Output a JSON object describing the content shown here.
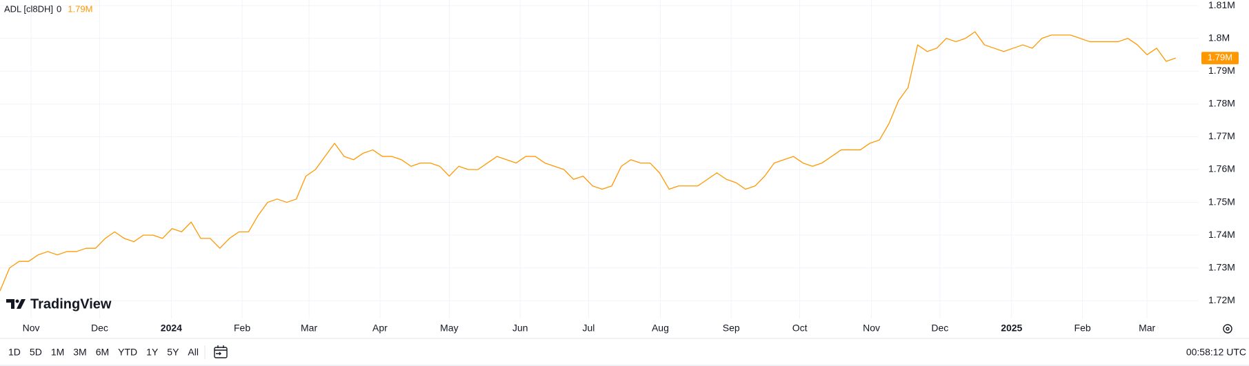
{
  "chart_data": {
    "type": "line",
    "series_name": "ADL [cl8DH]",
    "series_flag": "0",
    "last_value_label": "1.79M",
    "color": "#ff9800",
    "grid": true,
    "values": [
      1723000,
      1730000,
      1732000,
      1732000,
      1734000,
      1735000,
      1734000,
      1735000,
      1735000,
      1736000,
      1736000,
      1739000,
      1741000,
      1739000,
      1738000,
      1740000,
      1740000,
      1739000,
      1742000,
      1741000,
      1744000,
      1739000,
      1739000,
      1736000,
      1739000,
      1741000,
      1741000,
      1746000,
      1750000,
      1751000,
      1750000,
      1751000,
      1758000,
      1760000,
      1764000,
      1768000,
      1764000,
      1763000,
      1765000,
      1766000,
      1764000,
      1764000,
      1763000,
      1761000,
      1762000,
      1762000,
      1761000,
      1758000,
      1761000,
      1760000,
      1760000,
      1762000,
      1764000,
      1763000,
      1762000,
      1764000,
      1764000,
      1762000,
      1761000,
      1760000,
      1757000,
      1758000,
      1755000,
      1754000,
      1755000,
      1761000,
      1763000,
      1762000,
      1762000,
      1759000,
      1754000,
      1755000,
      1755000,
      1755000,
      1757000,
      1759000,
      1757000,
      1756000,
      1754000,
      1755000,
      1758000,
      1762000,
      1763000,
      1764000,
      1762000,
      1761000,
      1762000,
      1764000,
      1766000,
      1766000,
      1766000,
      1768000,
      1769000,
      1774000,
      1781000,
      1785000,
      1798000,
      1796000,
      1797000,
      1800000,
      1799000,
      1800000,
      1802000,
      1798000,
      1797000,
      1796000,
      1797000,
      1798000,
      1797000,
      1800000,
      1801000,
      1801000,
      1801000,
      1800000,
      1799000,
      1799000,
      1799000,
      1799000,
      1800000,
      1798000,
      1795000,
      1797000,
      1793000,
      1794000
    ],
    "xlim": [
      0,
      125.4
    ],
    "xticks": [
      {
        "value": 3.25,
        "label": "Nov"
      },
      {
        "value": 10.42,
        "label": "Dec"
      },
      {
        "value": 17.92,
        "label": "2024"
      },
      {
        "value": 25.33,
        "label": "Feb"
      },
      {
        "value": 32.33,
        "label": "Mar"
      },
      {
        "value": 39.75,
        "label": "Apr"
      },
      {
        "value": 47,
        "label": "May"
      },
      {
        "value": 54.42,
        "label": "Jun"
      },
      {
        "value": 61.58,
        "label": "Jul"
      },
      {
        "value": 69.08,
        "label": "Aug"
      },
      {
        "value": 76.5,
        "label": "Sep"
      },
      {
        "value": 83.67,
        "label": "Oct"
      },
      {
        "value": 91.17,
        "label": "Nov"
      },
      {
        "value": 98.33,
        "label": "Dec"
      },
      {
        "value": 105.83,
        "label": "2025"
      },
      {
        "value": 113.25,
        "label": "Feb"
      },
      {
        "value": 120,
        "label": "Mar"
      }
    ],
    "ylim": [
      1714600,
      1811700
    ],
    "yticks": [
      {
        "value": 1720000,
        "label": "1.72M"
      },
      {
        "value": 1730000,
        "label": "1.73M"
      },
      {
        "value": 1740000,
        "label": "1.74M"
      },
      {
        "value": 1750000,
        "label": "1.75M"
      },
      {
        "value": 1760000,
        "label": "1.76M"
      },
      {
        "value": 1770000,
        "label": "1.77M"
      },
      {
        "value": 1780000,
        "label": "1.78M"
      },
      {
        "value": 1790000,
        "label": "1.79M"
      },
      {
        "value": 1800000,
        "label": "1.8M"
      },
      {
        "value": 1810000,
        "label": "1.81M"
      }
    ]
  },
  "watermark": "TradingView",
  "toolbar": {
    "ranges": [
      "1D",
      "5D",
      "1M",
      "3M",
      "6M",
      "YTD",
      "1Y",
      "5Y",
      "All"
    ],
    "clock": "00:58:12 UTC"
  }
}
